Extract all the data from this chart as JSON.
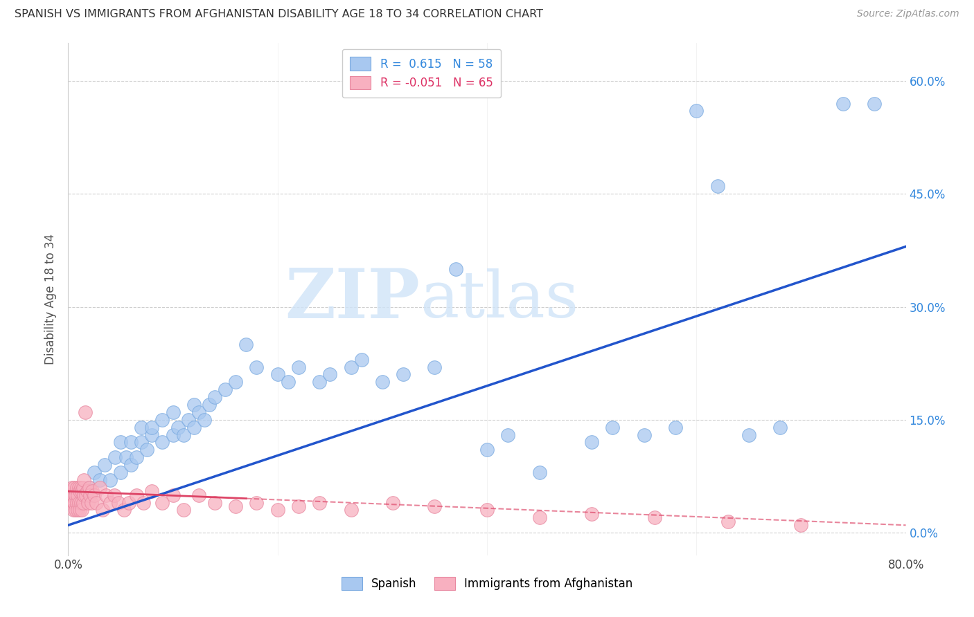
{
  "title": "SPANISH VS IMMIGRANTS FROM AFGHANISTAN DISABILITY AGE 18 TO 34 CORRELATION CHART",
  "source": "Source: ZipAtlas.com",
  "ylabel": "Disability Age 18 to 34",
  "xlim": [
    0.0,
    0.8
  ],
  "ylim": [
    -0.03,
    0.65
  ],
  "yticks": [
    0.0,
    0.15,
    0.3,
    0.45,
    0.6
  ],
  "ytick_labels": [
    "0.0%",
    "15.0%",
    "30.0%",
    "45.0%",
    "60.0%"
  ],
  "xticks": [
    0.0,
    0.2,
    0.4,
    0.6,
    0.8
  ],
  "xtick_labels": [
    "0.0%",
    "",
    "",
    "",
    "80.0%"
  ],
  "R_spanish": 0.615,
  "N_spanish": 58,
  "R_afghan": -0.051,
  "N_afghan": 65,
  "blue_color": "#a8c8f0",
  "blue_edge_color": "#7aaae0",
  "pink_color": "#f8b0c0",
  "pink_edge_color": "#e888a0",
  "blue_line_color": "#2255cc",
  "pink_line_color": "#dd4466",
  "watermark_color": "#d0e4f8",
  "spanish_x": [
    0.02,
    0.025,
    0.03,
    0.035,
    0.04,
    0.045,
    0.05,
    0.05,
    0.055,
    0.06,
    0.06,
    0.065,
    0.07,
    0.07,
    0.075,
    0.08,
    0.08,
    0.09,
    0.09,
    0.1,
    0.1,
    0.105,
    0.11,
    0.115,
    0.12,
    0.12,
    0.125,
    0.13,
    0.135,
    0.14,
    0.15,
    0.16,
    0.17,
    0.18,
    0.2,
    0.21,
    0.22,
    0.24,
    0.25,
    0.27,
    0.28,
    0.3,
    0.32,
    0.35,
    0.37,
    0.4,
    0.42,
    0.45,
    0.5,
    0.52,
    0.55,
    0.58,
    0.6,
    0.62,
    0.65,
    0.68,
    0.74,
    0.77
  ],
  "spanish_y": [
    0.06,
    0.08,
    0.07,
    0.09,
    0.07,
    0.1,
    0.08,
    0.12,
    0.1,
    0.09,
    0.12,
    0.1,
    0.12,
    0.14,
    0.11,
    0.13,
    0.14,
    0.12,
    0.15,
    0.13,
    0.16,
    0.14,
    0.13,
    0.15,
    0.14,
    0.17,
    0.16,
    0.15,
    0.17,
    0.18,
    0.19,
    0.2,
    0.25,
    0.22,
    0.21,
    0.2,
    0.22,
    0.2,
    0.21,
    0.22,
    0.23,
    0.2,
    0.21,
    0.22,
    0.35,
    0.11,
    0.13,
    0.08,
    0.12,
    0.14,
    0.13,
    0.14,
    0.56,
    0.46,
    0.13,
    0.14,
    0.57,
    0.57
  ],
  "afghan_x": [
    0.002,
    0.003,
    0.004,
    0.005,
    0.005,
    0.006,
    0.006,
    0.007,
    0.007,
    0.008,
    0.008,
    0.009,
    0.009,
    0.01,
    0.01,
    0.011,
    0.011,
    0.012,
    0.012,
    0.013,
    0.013,
    0.014,
    0.014,
    0.015,
    0.015,
    0.016,
    0.017,
    0.018,
    0.019,
    0.02,
    0.021,
    0.022,
    0.023,
    0.025,
    0.027,
    0.03,
    0.033,
    0.036,
    0.04,
    0.044,
    0.048,
    0.053,
    0.058,
    0.065,
    0.072,
    0.08,
    0.09,
    0.1,
    0.11,
    0.125,
    0.14,
    0.16,
    0.18,
    0.2,
    0.22,
    0.24,
    0.27,
    0.31,
    0.35,
    0.4,
    0.45,
    0.5,
    0.56,
    0.63,
    0.7
  ],
  "afghan_y": [
    0.05,
    0.04,
    0.06,
    0.03,
    0.05,
    0.04,
    0.06,
    0.03,
    0.05,
    0.04,
    0.06,
    0.03,
    0.05,
    0.04,
    0.06,
    0.03,
    0.055,
    0.04,
    0.06,
    0.03,
    0.055,
    0.04,
    0.06,
    0.05,
    0.07,
    0.16,
    0.05,
    0.055,
    0.04,
    0.06,
    0.05,
    0.04,
    0.055,
    0.05,
    0.04,
    0.06,
    0.03,
    0.05,
    0.04,
    0.05,
    0.04,
    0.03,
    0.04,
    0.05,
    0.04,
    0.055,
    0.04,
    0.05,
    0.03,
    0.05,
    0.04,
    0.035,
    0.04,
    0.03,
    0.035,
    0.04,
    0.03,
    0.04,
    0.035,
    0.03,
    0.02,
    0.025,
    0.02,
    0.015,
    0.01
  ]
}
